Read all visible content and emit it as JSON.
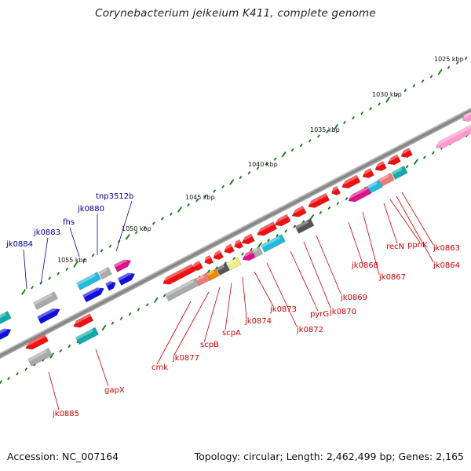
{
  "title": "Corynebacterium jeikeium K411, complete genome",
  "footer": {
    "accession": "Accession: NC_007164",
    "summary": "Topology: circular; Length: 2,462,499 bp; Genes: 2,165"
  },
  "ruler_labels": [
    "1025 kbp",
    "1030 kbp",
    "1035 kbp",
    "1040 kbp",
    "1045 kbp",
    "1050 kbp",
    "1055 kbp"
  ],
  "gene_labels_reverse": [
    "jk0863",
    "jk0864",
    "ppnK",
    "recN",
    "jk0867",
    "jk0868",
    "jk0869",
    "jk0870",
    "pyrG",
    "jk0872",
    "jk0873",
    "jk0874",
    "scpA",
    "scpB",
    "jk0877",
    "cmk",
    "gapX",
    "jk0885"
  ],
  "gene_labels_forward": [
    "tnp3512b",
    "jk0880",
    "fhs",
    "jk0883",
    "jk0884"
  ],
  "colors": {
    "reverse_label": "#cc0000",
    "forward_label": "#000099",
    "red_gene": "#ee1111",
    "blue_gene": "#1010dd",
    "cyan_gene": "#22bbdd",
    "teal_gene": "#11aaaa",
    "magenta_gene": "#dd1188",
    "pink_gene": "#ff99cc",
    "salmon_gene": "#ee7777",
    "orange_gene": "#ee8800",
    "yellow_gene": "#eeee88",
    "gray_gene": "#aaaaaa",
    "darkgray_gene": "#555555",
    "ruler_green": "#117711",
    "backbone": "#888888"
  }
}
